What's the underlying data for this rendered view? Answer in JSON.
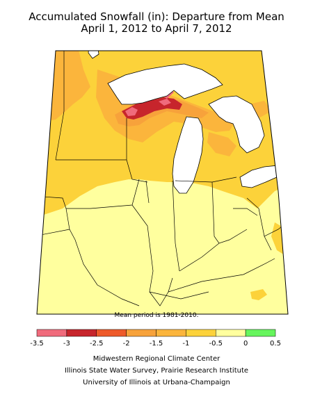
{
  "title_line1": "Accumulated Snowfall (in): Departure from Mean",
  "title_line2": "April 1, 2012 to April 7, 2012",
  "mean_period_note": "Mean period is 1981-2010.",
  "legend": {
    "ticks": [
      "-3.5",
      "-3",
      "-2.5",
      "-2",
      "-1.5",
      "-1",
      "-0.5",
      "0",
      "0.5"
    ],
    "colors": [
      "#f06b7c",
      "#c7252c",
      "#ee5a2a",
      "#f7a23b",
      "#fbb53c",
      "#fcd23a",
      "#ffff9e",
      "#66f55d"
    ]
  },
  "map_colors": {
    "lake": "#ffffff",
    "deficit_0_to_-0.5": "#ffff9e",
    "deficit_-0.5_to_-1": "#fcd23a",
    "deficit_-1_to_-1.5": "#fbb53c",
    "deficit_-1.5_to_-2": "#f7a23b",
    "deficit_-2.5_to_-3": "#c7252c",
    "deficit_-3_to_-3.5": "#f06b7c"
  },
  "credits": [
    "Midwestern Regional Climate Center",
    "Illinois State Water Survey, Prairie Research Institute",
    "University of Illinois at Urbana-Champaign"
  ]
}
